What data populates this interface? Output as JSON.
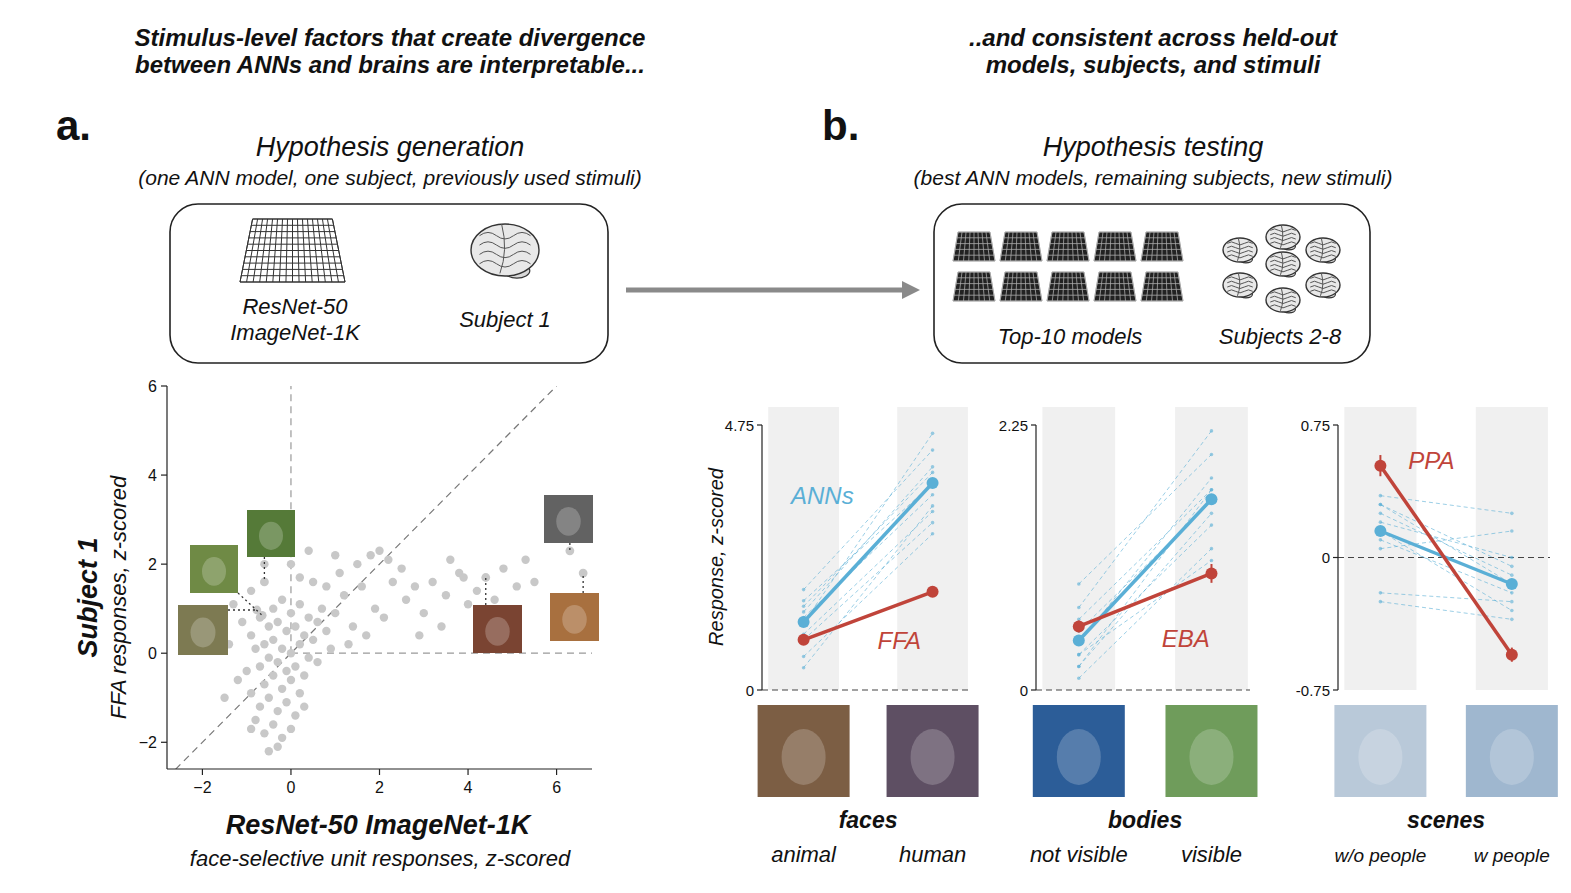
{
  "figure": {
    "heading_a": [
      "Stimulus-level factors that create divergence",
      "between ANNs and brains are interpretable..."
    ],
    "heading_b": [
      "..and consistent across held-out",
      "models, subjects, and stimuli"
    ],
    "panel_a": {
      "letter": "a.",
      "title": "Hypothesis generation",
      "subtitle": "(one ANN model, one subject, previously used stimuli)",
      "model_label": [
        "ResNet-50",
        "ImageNet-1K"
      ],
      "subject_label": "Subject 1"
    },
    "panel_b": {
      "letter": "b.",
      "title": "Hypothesis testing",
      "subtitle": "(best ANN models, remaining subjects, new stimuli)",
      "model_label": "Top-10 models",
      "subject_label": "Subjects 2-8"
    }
  },
  "chart_data": [
    {
      "type": "scatter",
      "color": "#c8c8c8",
      "marker": "circle",
      "x_label": [
        "ResNet-50 ImageNet-1K",
        "face-selective unit responses, z-scored"
      ],
      "y_label": [
        "Subject 1",
        "FFA responses, z-scored"
      ],
      "xlim": [
        -2.8,
        6.8
      ],
      "ylim": [
        -2.6,
        6
      ],
      "xticks": [
        {
          "value": -2,
          "label": "−2"
        },
        0,
        2,
        4,
        6
      ],
      "yticks": [
        {
          "value": -2,
          "label": "−2"
        },
        0,
        2,
        4,
        6
      ],
      "x": [
        -0.8,
        -0.6,
        -0.4,
        -0.2,
        -0.7,
        -0.5,
        -0.3,
        -0.1,
        0.1,
        -0.9,
        -0.6,
        -0.4,
        -0.2,
        0,
        0.2,
        -1.0,
        -0.7,
        -0.5,
        -0.3,
        -0.1,
        0.1,
        0.3,
        -0.8,
        -0.6,
        -0.4,
        -0.2,
        0,
        0.2,
        0.4,
        -0.9,
        -0.5,
        -0.3,
        -0.1,
        0.1,
        0.3,
        0.5,
        -0.7,
        -0.4,
        -0.2,
        0,
        0.2,
        0.4,
        0.6,
        -1.2,
        -1.4,
        -1.1,
        -0.3,
        -0.5,
        0,
        0.3,
        0.6,
        0.8,
        0.9,
        0.7,
        1.0,
        1.2,
        1.4,
        1.6,
        1.8,
        2.0,
        2.2,
        1.1,
        1.5,
        0.8,
        0.5,
        0.2,
        0,
        1.9,
        2.3,
        2.5,
        1.3,
        1.7,
        2.1,
        2.6,
        2.8,
        3.0,
        0.4,
        1.0,
        3.2,
        3.5,
        3.8,
        4.0,
        4.2,
        3.6,
        3.9,
        4.6,
        4.8,
        5.1,
        5.3,
        5.5,
        3.4,
        4.4,
        2.9,
        5.0,
        -1.5,
        -0.9,
        -1.3,
        -0.9,
        -0.6,
        -1.6
      ],
      "y": [
        -1.5,
        -1.8,
        -1.6,
        -1.9,
        -1.2,
        -1.0,
        -1.3,
        -1.1,
        -1.4,
        -0.9,
        -0.7,
        -0.5,
        -0.8,
        -0.6,
        -0.9,
        -0.4,
        -0.3,
        -0.1,
        -0.2,
        -0.4,
        -0.3,
        -0.5,
        0.1,
        0.2,
        0.3,
        0.1,
        0,
        0.2,
        -0.1,
        0.4,
        0.6,
        0.7,
        0.5,
        0.6,
        0.4,
        0.3,
        0.8,
        1.0,
        1.2,
        0.9,
        1.1,
        0.8,
        0.7,
        -0.6,
        0.2,
        0.7,
        -2.1,
        -2.2,
        -1.7,
        -1.2,
        -0.2,
        0.5,
        0.1,
        1.0,
        0.9,
        1.3,
        0.6,
        1.5,
        2.2,
        2.3,
        2.1,
        1.8,
        2.0,
        1.5,
        1.6,
        1.7,
        2.0,
        1.0,
        1.6,
        1.9,
        0.2,
        0.4,
        0.8,
        1.2,
        1.5,
        0.9,
        2.3,
        2.2,
        1.6,
        1.3,
        1.8,
        1.1,
        1.4,
        2.1,
        1.7,
        1.2,
        1.9,
        1.5,
        2.1,
        1.6,
        0.6,
        0.8,
        0.4,
        0.9,
        -1.0,
        -1.7,
        1.1,
        1.4,
        2.0,
        0.6
      ],
      "annotated": {
        "x": [
          -0.77,
          -0.65,
          -0.6,
          4.4,
          6.3,
          6.6
        ],
        "y": [
          0.97,
          0.85,
          1.6,
          1.7,
          2.3,
          1.8
        ]
      }
    },
    {
      "type": "line",
      "title": "faces",
      "y_label": "Response, z-scored",
      "categories": [
        "animal",
        "human"
      ],
      "ylim": [
        0,
        4.75
      ],
      "yticks": [
        0,
        4.75
      ],
      "series": [
        {
          "name": "ANNs",
          "color": "#5aafd6",
          "values": [
            1.22,
            3.71
          ],
          "individual_values": [
            [
              0.6,
              2.8
            ],
            [
              1.0,
              3.2
            ],
            [
              1.3,
              3.5
            ],
            [
              1.5,
              3.9
            ],
            [
              1.8,
              4.3
            ],
            [
              0.9,
              3.0
            ],
            [
              1.2,
              4.6
            ],
            [
              1.6,
              3.7
            ],
            [
              1.4,
              4.0
            ],
            [
              0.4,
              3.3
            ]
          ]
        },
        {
          "name": "FFA",
          "color": "#c0443a",
          "values": [
            0.9,
            1.76
          ],
          "errors": [
            0.04,
            0.05
          ]
        }
      ]
    },
    {
      "type": "line",
      "title": "bodies",
      "categories": [
        "not visible",
        "visible"
      ],
      "ylim": [
        0,
        2.25
      ],
      "yticks": [
        0,
        2.25
      ],
      "series": [
        {
          "color": "#5aafd6",
          "values": [
            0.42,
            1.62
          ],
          "individual_values": [
            [
              0.1,
              1.2
            ],
            [
              0.3,
              1.4
            ],
            [
              0.5,
              1.6
            ],
            [
              0.9,
              2.0
            ],
            [
              0.4,
              1.8
            ],
            [
              0.2,
              1.5
            ],
            [
              0.6,
              1.7
            ],
            [
              0.7,
              2.2
            ],
            [
              0.3,
              1.1
            ],
            [
              0.2,
              1.7
            ]
          ]
        },
        {
          "name": "EBA",
          "color": "#c0443a",
          "values": [
            0.54,
            0.99
          ],
          "errors": [
            0.05,
            0.08
          ]
        }
      ]
    },
    {
      "type": "line",
      "title": "scenes",
      "categories": [
        "w/o people",
        "w people"
      ],
      "ylim": [
        -0.75,
        0.75
      ],
      "yticks": [
        -0.75,
        0,
        0.75
      ],
      "series": [
        {
          "color": "#5aafd6",
          "values": [
            0.15,
            -0.15
          ],
          "individual_values": [
            [
              0.35,
              0.25
            ],
            [
              0.3,
              -0.05
            ],
            [
              0.2,
              0.0
            ],
            [
              0.1,
              -0.2
            ],
            [
              0.15,
              -0.3
            ],
            [
              0.05,
              0.15
            ],
            [
              -0.2,
              -0.25
            ],
            [
              -0.25,
              -0.35
            ],
            [
              0.25,
              -0.1
            ],
            [
              0.3,
              -0.15
            ]
          ]
        },
        {
          "name": "PPA",
          "color": "#c0443a",
          "values": [
            0.52,
            -0.55
          ],
          "errors": [
            0.06,
            0.04
          ]
        }
      ]
    }
  ]
}
